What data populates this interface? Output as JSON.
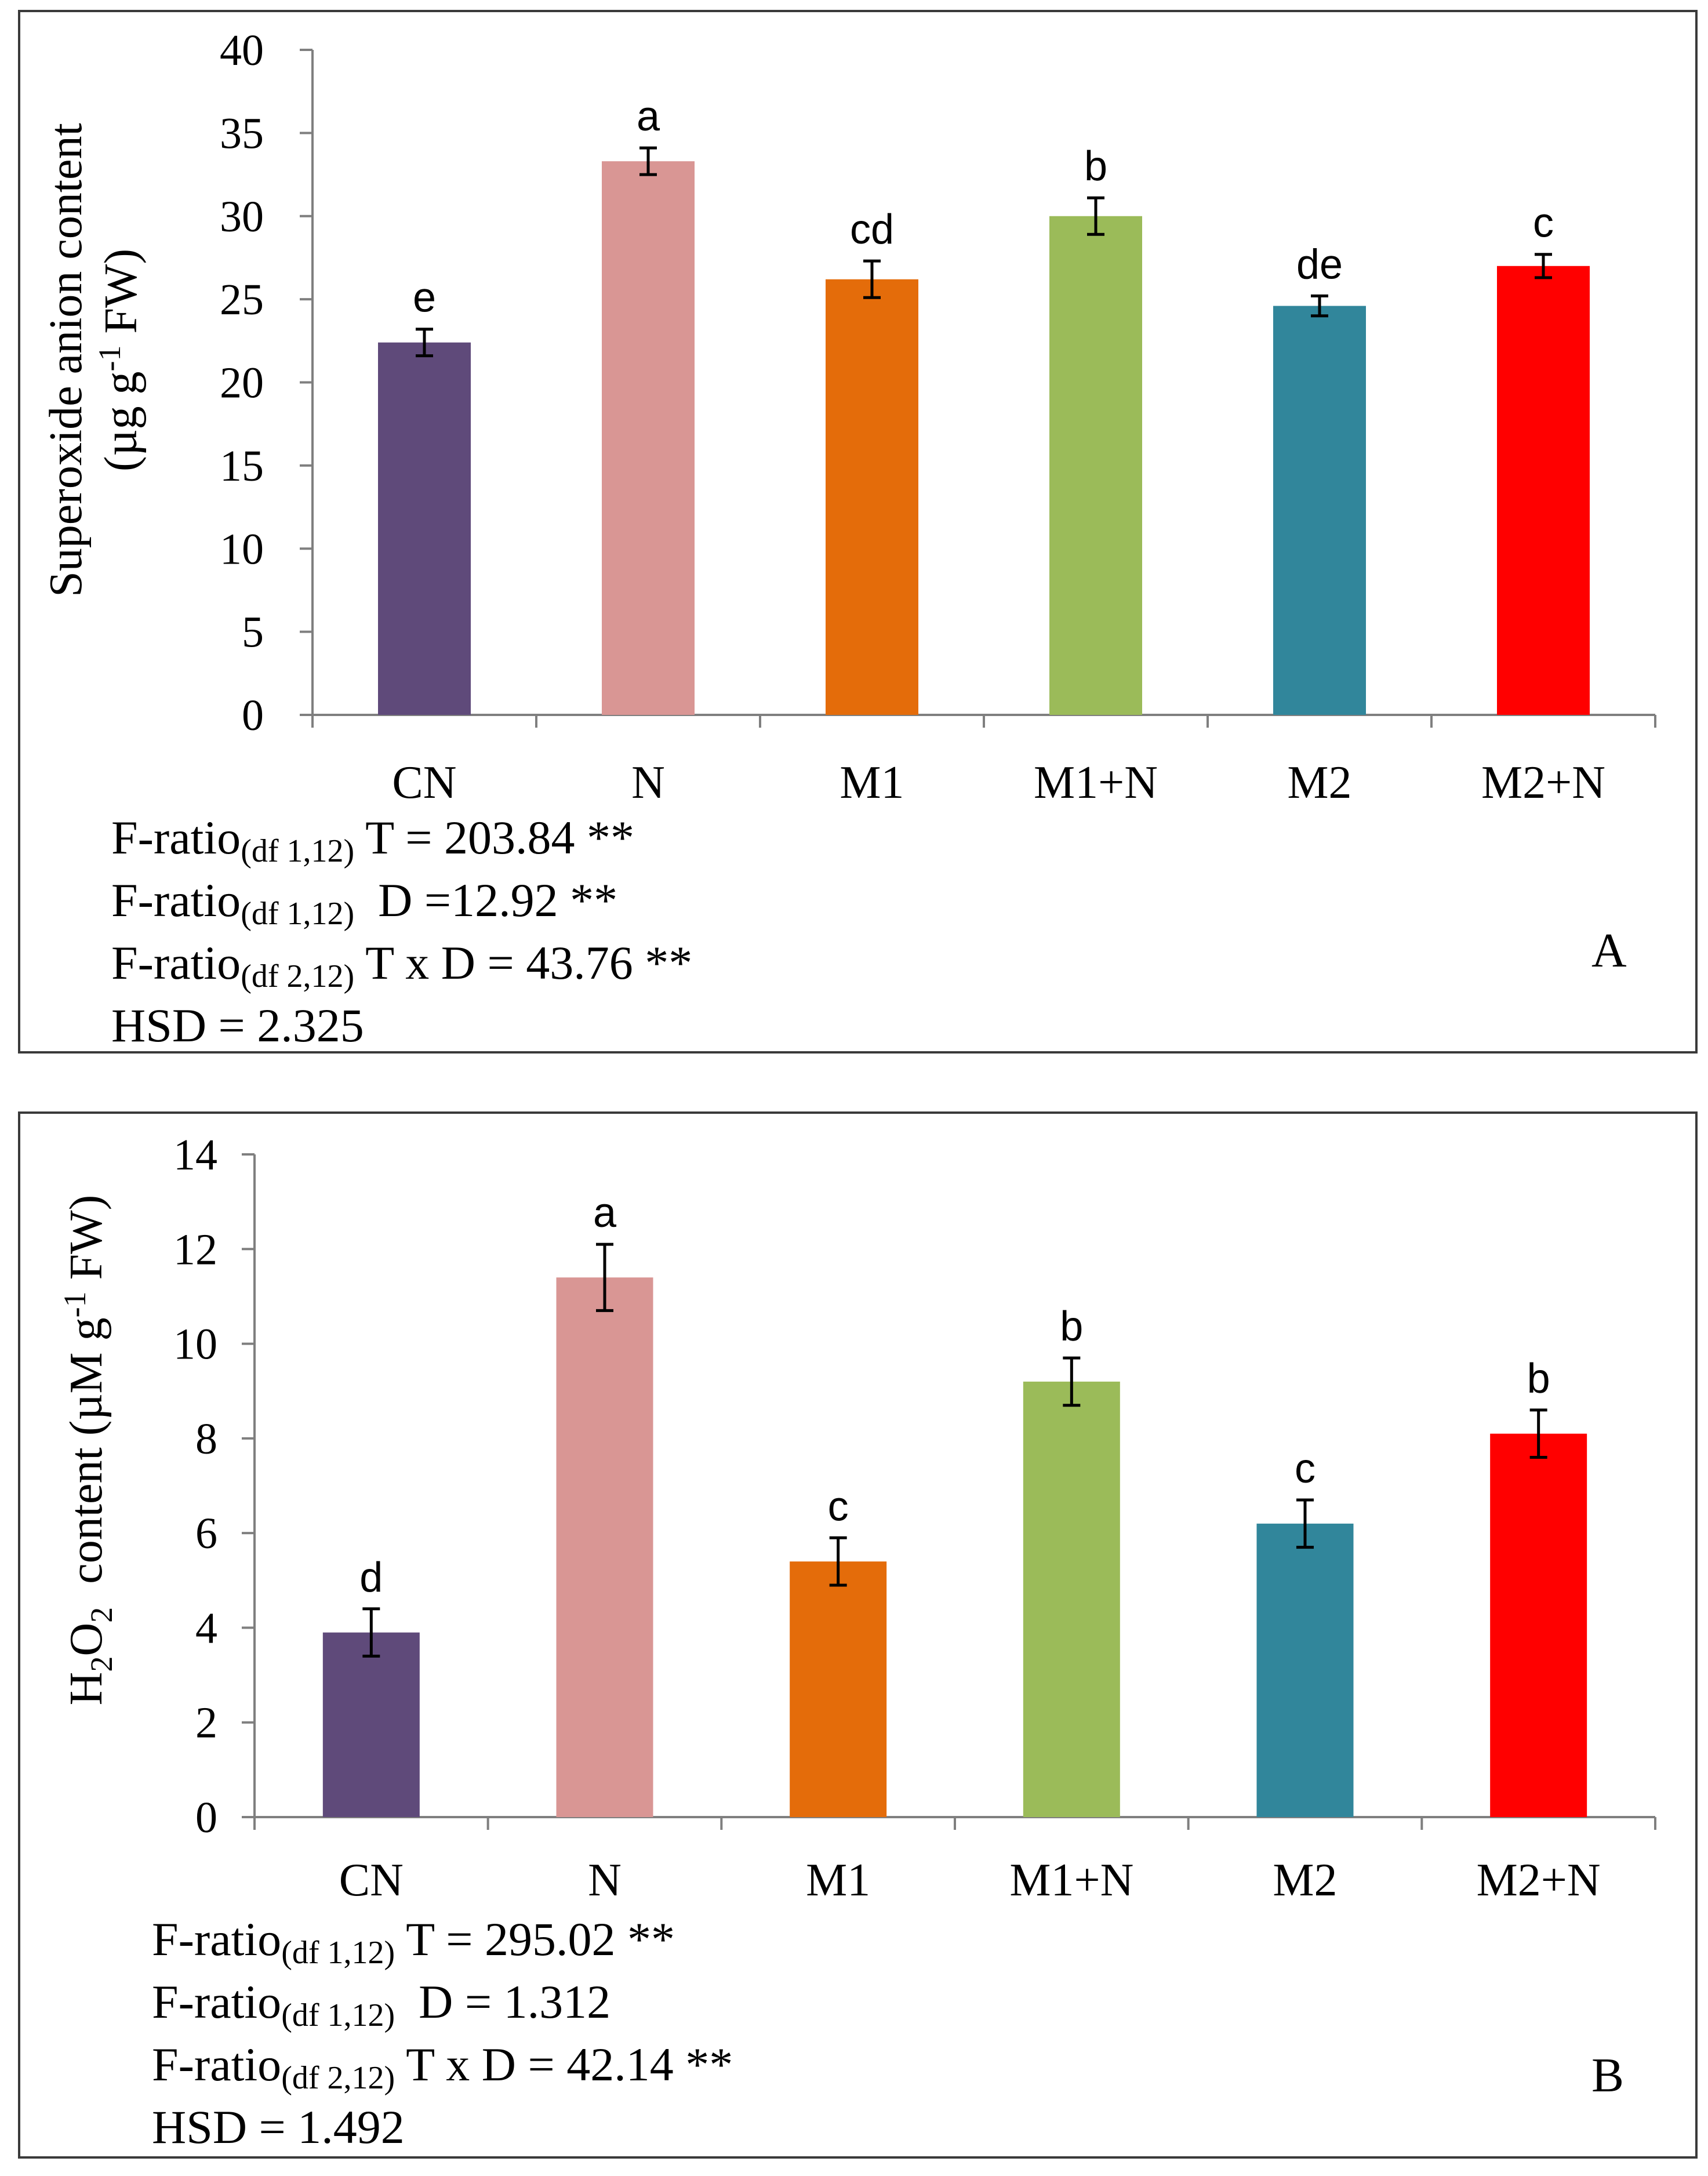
{
  "chart_data": [
    {
      "type": "bar",
      "panel_label": "A",
      "ylabel_line1": "Superoxide anion content",
      "ylabel_line2_prefix": "(µg g",
      "ylabel_line2_sup": "-1",
      "ylabel_line2_suffix": " FW)",
      "categories": [
        "CN",
        "N",
        "M1",
        "M1+N",
        "M2",
        "M2+N"
      ],
      "values": [
        22.4,
        33.3,
        26.2,
        30.0,
        24.6,
        27.0
      ],
      "errors": [
        0.8,
        0.8,
        1.1,
        1.1,
        0.6,
        0.7
      ],
      "letters": [
        "e",
        "a",
        "cd",
        "b",
        "de",
        "c"
      ],
      "colors": [
        "#5f4a7a",
        "#d99694",
        "#e46c0a",
        "#9bbb59",
        "#31869b",
        "#ff0000"
      ],
      "ylim": [
        0,
        40
      ],
      "yticks": [
        0,
        5,
        10,
        15,
        20,
        25,
        30,
        35,
        40
      ],
      "stats": [
        {
          "prefix": "F-ratio",
          "sub": "(df 1,12)",
          "text": " T = 203.84 **"
        },
        {
          "prefix": "F-ratio",
          "sub": "(df 1,12)",
          "text": "  D =12.92 **"
        },
        {
          "prefix": "F-ratio",
          "sub": "(df 2,12)",
          "text": " T x D = 43.76 **"
        },
        {
          "prefix": "HSD = 2.325",
          "sub": "",
          "text": ""
        }
      ]
    },
    {
      "type": "bar",
      "panel_label": "B",
      "ylabel_h": "H",
      "ylabel_sub2a": "2",
      "ylabel_o": "O",
      "ylabel_sub2b": "2",
      "ylabel_rest": "  content (µM g",
      "ylabel_sup": "-1",
      "ylabel_end": " FW)",
      "categories": [
        "CN",
        "N",
        "M1",
        "M1+N",
        "M2",
        "M2+N"
      ],
      "values": [
        3.9,
        11.4,
        5.4,
        9.2,
        6.2,
        8.1
      ],
      "errors": [
        0.5,
        0.7,
        0.5,
        0.5,
        0.5,
        0.5
      ],
      "letters": [
        "d",
        "a",
        "c",
        "b",
        "c",
        "b"
      ],
      "colors": [
        "#5f4a7a",
        "#d99694",
        "#e46c0a",
        "#9bbb59",
        "#31869b",
        "#ff0000"
      ],
      "ylim": [
        0,
        14
      ],
      "yticks": [
        0,
        2,
        4,
        6,
        8,
        10,
        12,
        14
      ],
      "stats": [
        {
          "prefix": "F-ratio",
          "sub": "(df 1,12)",
          "text": " T = 295.02 **"
        },
        {
          "prefix": "F-ratio",
          "sub": "(df 1,12)",
          "text": "  D = 1.312"
        },
        {
          "prefix": "F-ratio",
          "sub": "(df 2,12)",
          "text": " T x D = 42.14 **"
        },
        {
          "prefix": "HSD = 1.492",
          "sub": "",
          "text": ""
        }
      ]
    }
  ]
}
